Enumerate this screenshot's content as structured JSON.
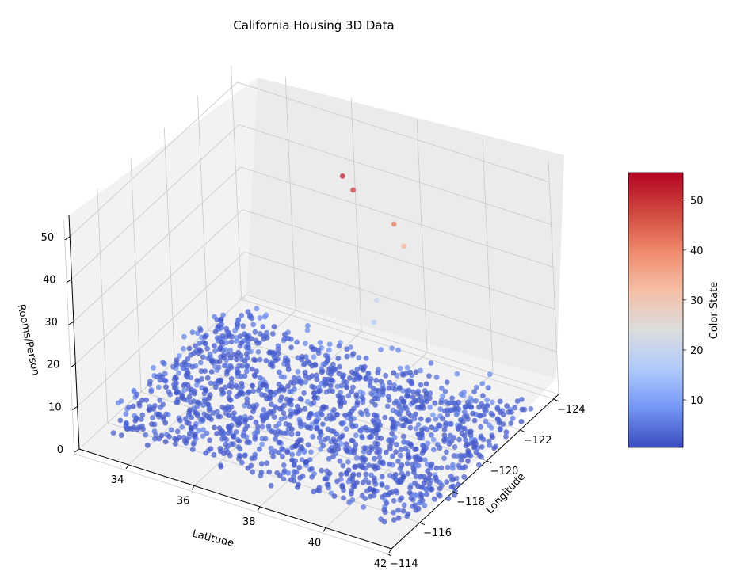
{
  "chart_data": {
    "type": "scatter",
    "title": "California Housing 3D Data",
    "xlabel": "Latitude",
    "ylabel": "Longitude",
    "zlabel": "Rooms/Person",
    "xlim": [
      32.5,
      42.0
    ],
    "ylim": [
      -114.3,
      -124.3
    ],
    "zlim": [
      0,
      55
    ],
    "x_ticks": [
      34,
      36,
      38,
      40,
      42
    ],
    "y_ticks": [
      -124,
      -122,
      -120,
      -118,
      -116,
      -114
    ],
    "z_ticks": [
      0,
      10,
      20,
      30,
      40,
      50
    ],
    "grid": true,
    "colormap": "coolwarm",
    "colorbar": {
      "label": "Color State",
      "range": [
        0.5,
        55.5
      ],
      "ticks": [
        10,
        20,
        30,
        40,
        50
      ],
      "colors": [
        "#3b4cc0",
        "#7396f5",
        "#b0cbfc",
        "#dcdddd",
        "#f6bfa6",
        "#ef896c",
        "#d0473d",
        "#b40426"
      ]
    },
    "highlighted_points": [
      {
        "lat": 37.4,
        "lon": -121.0,
        "z": 52.0
      },
      {
        "lat": 37.6,
        "lon": -121.2,
        "z": 48.5
      },
      {
        "lat": 38.6,
        "lon": -121.6,
        "z": 41.5
      },
      {
        "lat": 38.5,
        "lon": -122.3,
        "z": 33.5
      },
      {
        "lat": 35.2,
        "lon": -119.0,
        "z": 25.0
      },
      {
        "lat": 37.8,
        "lon": -121.9,
        "z": 20.5
      },
      {
        "lat": 37.9,
        "lon": -121.5,
        "z": 17.0
      },
      {
        "lat": 36.9,
        "lon": -119.8,
        "z": 14.5
      }
    ],
    "bulk_points_note_count": 1600,
    "bulk_lat_range": [
      32.6,
      41.9
    ],
    "bulk_lon_range": [
      -124.2,
      -114.5
    ],
    "bulk_z_range": [
      0,
      5
    ]
  }
}
